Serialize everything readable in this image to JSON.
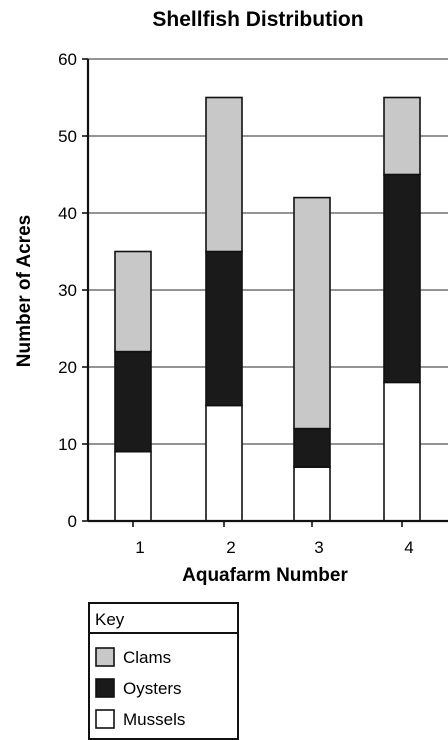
{
  "chart_data": {
    "type": "bar",
    "stacked": true,
    "title": "Shellfish Distribution",
    "xlabel": "Aquafarm Number",
    "ylabel": "Number of Acres",
    "categories": [
      "1",
      "2",
      "3",
      "4"
    ],
    "ylim": [
      0,
      60
    ],
    "yticks": [
      0,
      10,
      20,
      30,
      40,
      50,
      60
    ],
    "grid": true,
    "legend": {
      "title": "Key",
      "placement": "bottom-left",
      "order": [
        "Clams",
        "Oysters",
        "Mussels"
      ]
    },
    "series": [
      {
        "name": "Mussels",
        "values": [
          9,
          15,
          7,
          18
        ],
        "color": "#ffffff"
      },
      {
        "name": "Oysters",
        "values": [
          13,
          20,
          5,
          27
        ],
        "color": "#1a1a1a"
      },
      {
        "name": "Clams",
        "values": [
          13,
          20,
          30,
          10
        ],
        "color": "#c8c8c8"
      }
    ]
  }
}
